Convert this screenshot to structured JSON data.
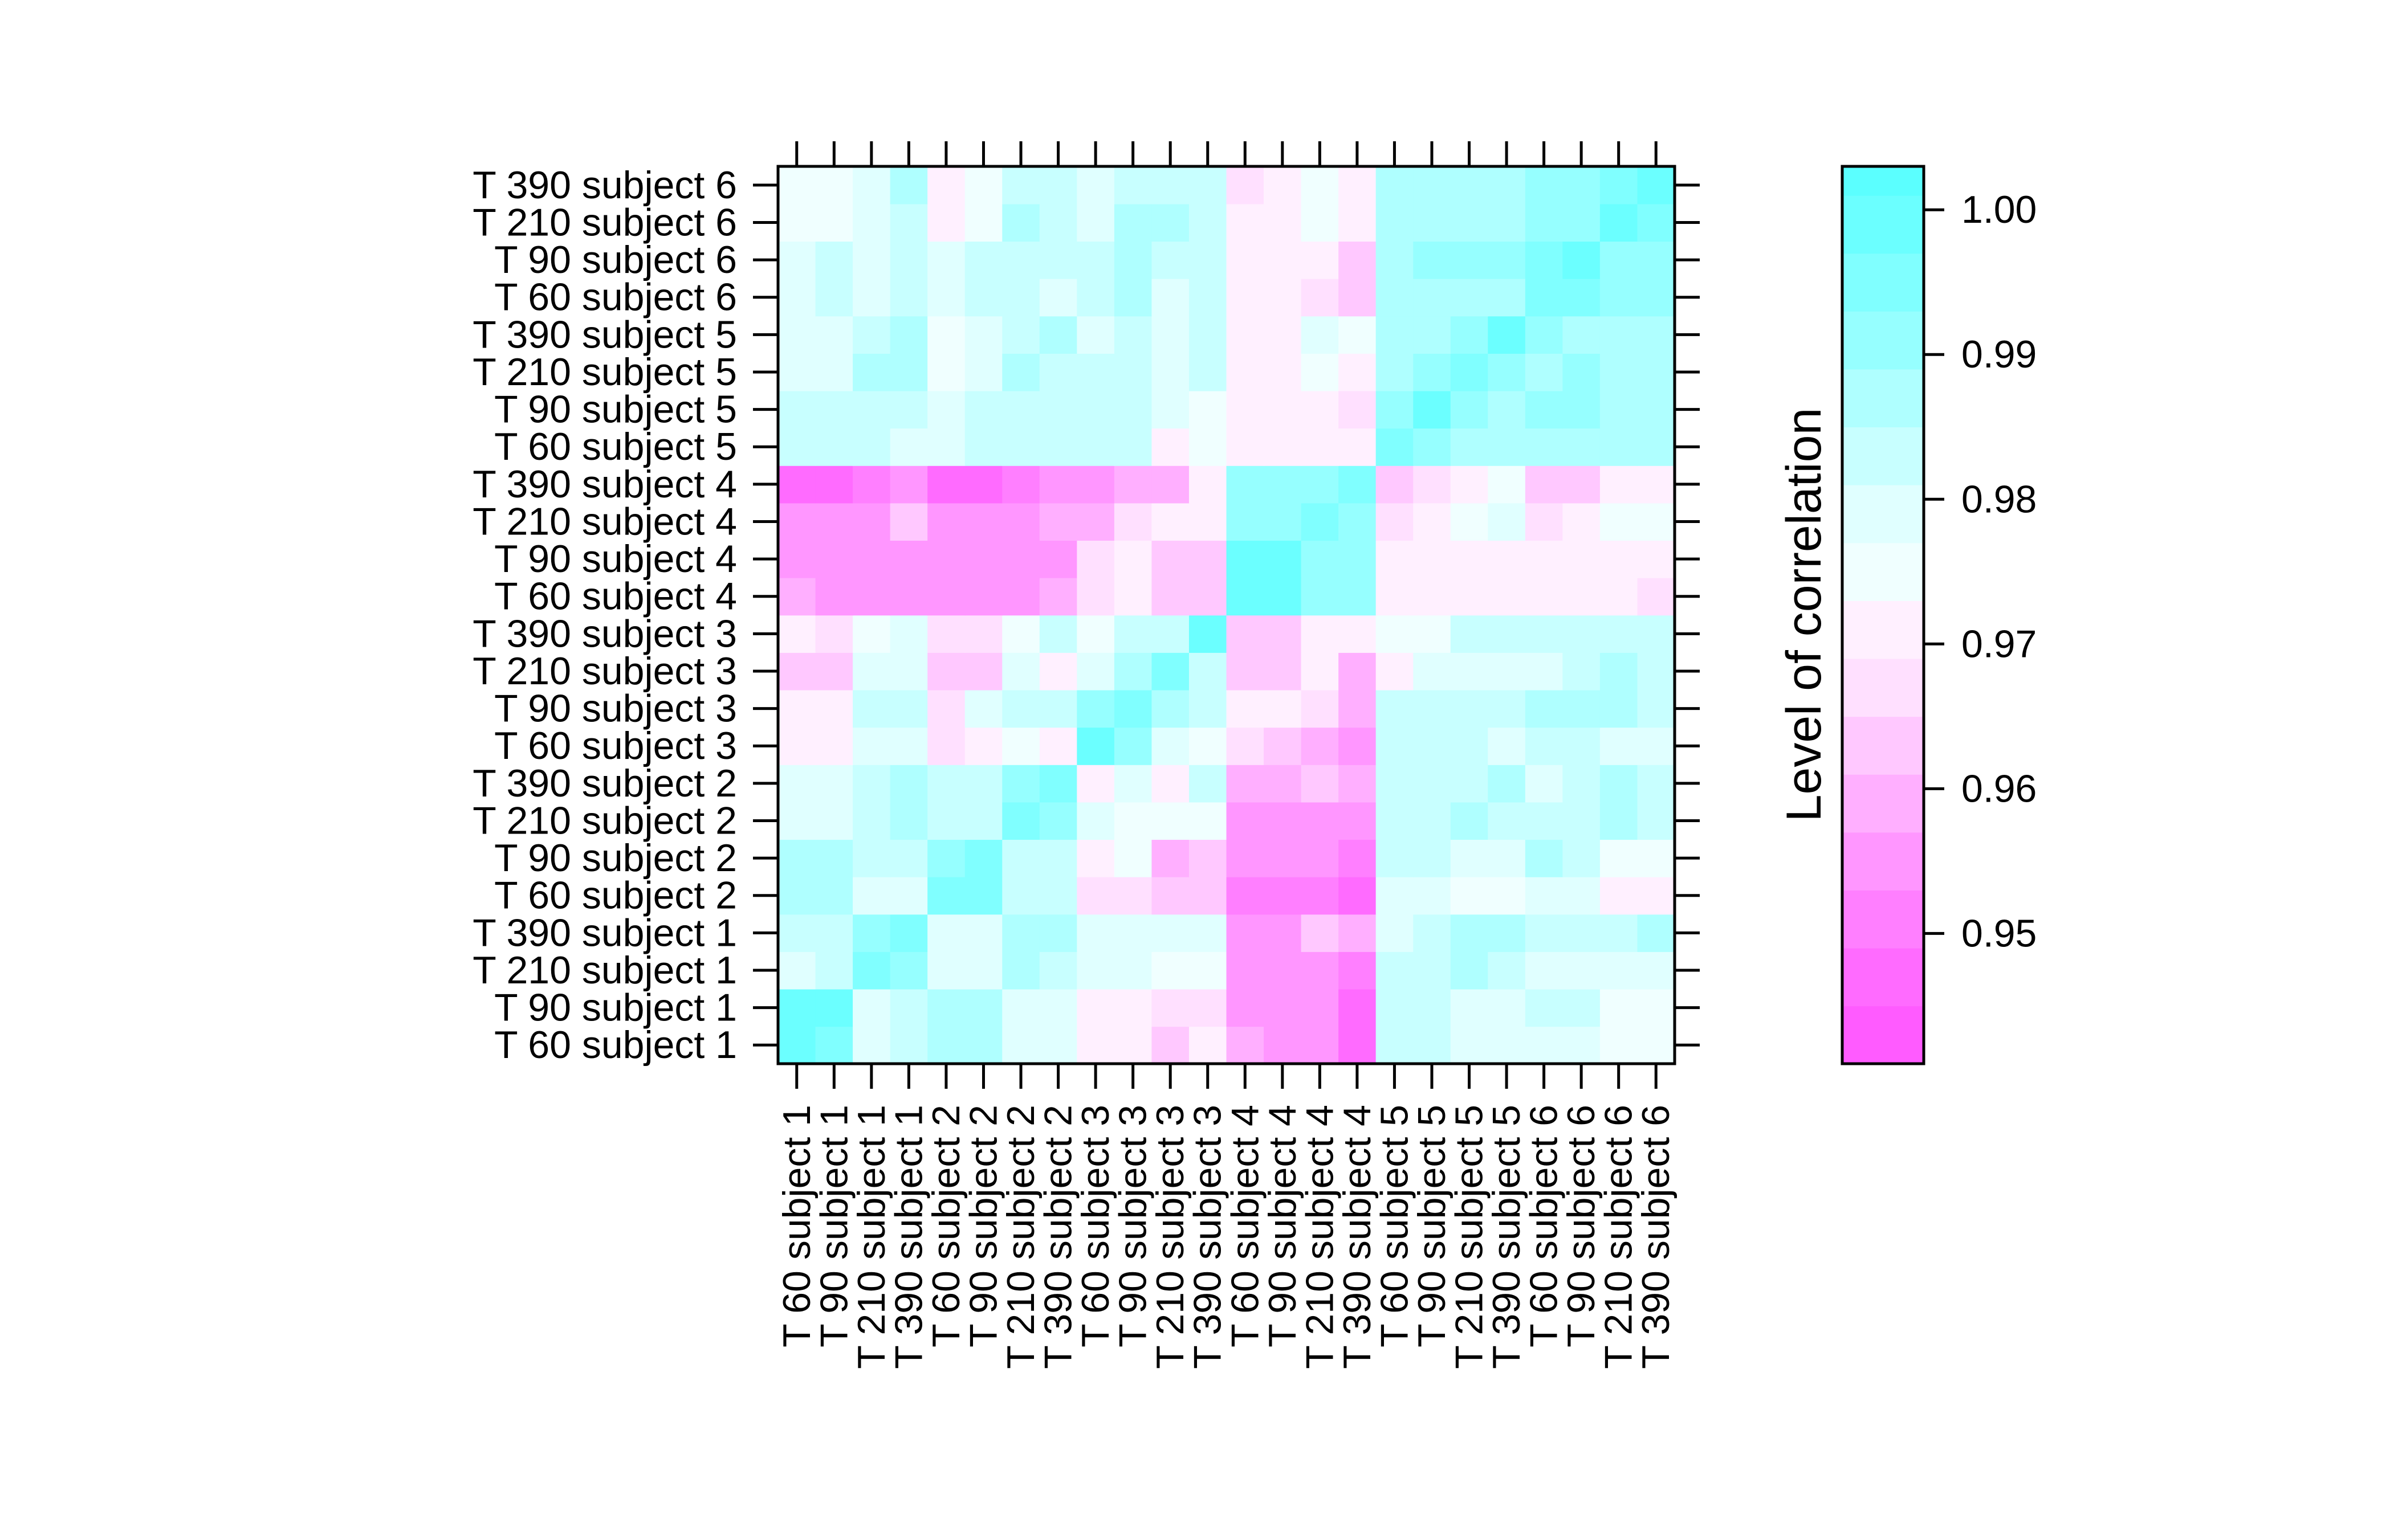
{
  "chart_data": {
    "type": "heatmap",
    "title": "",
    "xlabel": "",
    "ylabel": "",
    "x_labels": [
      "T 60 subject 1",
      "T 90 subject 1",
      "T 210 subject 1",
      "T 390 subject 1",
      "T 60 subject 2",
      "T 90 subject 2",
      "T 210 subject 2",
      "T 390 subject 2",
      "T 60 subject 3",
      "T 90 subject 3",
      "T 210 subject 3",
      "T 390 subject 3",
      "T 60 subject 4",
      "T 90 subject 4",
      "T 210 subject 4",
      "T 390 subject 4",
      "T 60 subject 5",
      "T 90 subject 5",
      "T 210 subject 5",
      "T 390 subject 5",
      "T 60 subject 6",
      "T 90 subject 6",
      "T 210 subject 6",
      "T 390 subject 6"
    ],
    "y_labels": [
      "T 60 subject 1",
      "T 90 subject 1",
      "T 210 subject 1",
      "T 390 subject 1",
      "T 60 subject 2",
      "T 90 subject 2",
      "T 210 subject 2",
      "T 390 subject 2",
      "T 60 subject 3",
      "T 90 subject 3",
      "T 210 subject 3",
      "T 390 subject 3",
      "T 60 subject 4",
      "T 90 subject 4",
      "T 210 subject 4",
      "T 390 subject 4",
      "T 60 subject 5",
      "T 90 subject 5",
      "T 210 subject 5",
      "T 390 subject 5",
      "T 60 subject 6",
      "T 90 subject 6",
      "T 210 subject 6",
      "T 390 subject 6"
    ],
    "values": [
      [
        0.998,
        0.996,
        0.979,
        0.981,
        0.987,
        0.987,
        0.978,
        0.978,
        0.971,
        0.971,
        0.964,
        0.969,
        0.958,
        0.953,
        0.953,
        0.945,
        0.984,
        0.984,
        0.98,
        0.98,
        0.98,
        0.98,
        0.976,
        0.976
      ],
      [
        0.997,
        0.998,
        0.979,
        0.981,
        0.986,
        0.985,
        0.98,
        0.978,
        0.972,
        0.971,
        0.965,
        0.966,
        0.953,
        0.953,
        0.954,
        0.948,
        0.984,
        0.984,
        0.98,
        0.98,
        0.982,
        0.982,
        0.976,
        0.976
      ],
      [
        0.979,
        0.981,
        0.996,
        0.99,
        0.979,
        0.979,
        0.986,
        0.984,
        0.978,
        0.978,
        0.976,
        0.976,
        0.955,
        0.955,
        0.955,
        0.951,
        0.984,
        0.984,
        0.985,
        0.982,
        0.98,
        0.98,
        0.98,
        0.98
      ],
      [
        0.983,
        0.983,
        0.991,
        0.996,
        0.979,
        0.98,
        0.986,
        0.986,
        0.978,
        0.98,
        0.978,
        0.978,
        0.955,
        0.956,
        0.962,
        0.958,
        0.978,
        0.982,
        0.987,
        0.986,
        0.982,
        0.982,
        0.982,
        0.986
      ],
      [
        0.987,
        0.987,
        0.978,
        0.978,
        0.996,
        0.993,
        0.984,
        0.984,
        0.968,
        0.968,
        0.961,
        0.963,
        0.951,
        0.951,
        0.951,
        0.948,
        0.98,
        0.978,
        0.976,
        0.976,
        0.978,
        0.978,
        0.97,
        0.97
      ],
      [
        0.988,
        0.988,
        0.981,
        0.982,
        0.991,
        0.996,
        0.984,
        0.984,
        0.972,
        0.976,
        0.96,
        0.964,
        0.956,
        0.956,
        0.956,
        0.952,
        0.982,
        0.982,
        0.98,
        0.98,
        0.986,
        0.982,
        0.975,
        0.975
      ],
      [
        0.979,
        0.979,
        0.984,
        0.986,
        0.984,
        0.984,
        0.996,
        0.989,
        0.98,
        0.976,
        0.975,
        0.975,
        0.956,
        0.956,
        0.956,
        0.953,
        0.982,
        0.982,
        0.986,
        0.982,
        0.984,
        0.984,
        0.986,
        0.982
      ],
      [
        0.978,
        0.978,
        0.984,
        0.986,
        0.984,
        0.984,
        0.99,
        0.996,
        0.972,
        0.979,
        0.972,
        0.982,
        0.96,
        0.957,
        0.962,
        0.958,
        0.982,
        0.982,
        0.984,
        0.986,
        0.98,
        0.984,
        0.986,
        0.984
      ],
      [
        0.971,
        0.971,
        0.979,
        0.979,
        0.966,
        0.971,
        0.976,
        0.972,
        0.998,
        0.99,
        0.978,
        0.974,
        0.966,
        0.962,
        0.957,
        0.955,
        0.982,
        0.982,
        0.982,
        0.978,
        0.984,
        0.982,
        0.98,
        0.98
      ],
      [
        0.971,
        0.971,
        0.982,
        0.982,
        0.968,
        0.978,
        0.984,
        0.982,
        0.99,
        0.996,
        0.986,
        0.982,
        0.972,
        0.972,
        0.968,
        0.958,
        0.984,
        0.984,
        0.984,
        0.984,
        0.986,
        0.986,
        0.986,
        0.984
      ],
      [
        0.964,
        0.964,
        0.977,
        0.977,
        0.962,
        0.964,
        0.977,
        0.972,
        0.978,
        0.986,
        0.996,
        0.983,
        0.964,
        0.964,
        0.972,
        0.958,
        0.972,
        0.978,
        0.98,
        0.98,
        0.978,
        0.982,
        0.986,
        0.982
      ],
      [
        0.969,
        0.966,
        0.976,
        0.978,
        0.966,
        0.968,
        0.976,
        0.982,
        0.974,
        0.982,
        0.982,
        0.998,
        0.964,
        0.964,
        0.972,
        0.972,
        0.976,
        0.976,
        0.982,
        0.984,
        0.982,
        0.982,
        0.984,
        0.982
      ],
      [
        0.958,
        0.955,
        0.955,
        0.955,
        0.956,
        0.956,
        0.956,
        0.958,
        0.966,
        0.972,
        0.964,
        0.964,
        0.998,
        0.998,
        0.99,
        0.99,
        0.972,
        0.972,
        0.972,
        0.972,
        0.972,
        0.972,
        0.972,
        0.968
      ],
      [
        0.953,
        0.953,
        0.955,
        0.955,
        0.953,
        0.955,
        0.956,
        0.956,
        0.966,
        0.972,
        0.964,
        0.964,
        0.997,
        0.998,
        0.99,
        0.99,
        0.972,
        0.972,
        0.972,
        0.972,
        0.972,
        0.972,
        0.972,
        0.972
      ],
      [
        0.953,
        0.953,
        0.955,
        0.962,
        0.953,
        0.953,
        0.956,
        0.958,
        0.958,
        0.968,
        0.972,
        0.972,
        0.99,
        0.99,
        0.996,
        0.99,
        0.968,
        0.972,
        0.976,
        0.978,
        0.968,
        0.972,
        0.976,
        0.976
      ],
      [
        0.945,
        0.948,
        0.951,
        0.956,
        0.947,
        0.947,
        0.952,
        0.956,
        0.955,
        0.958,
        0.958,
        0.97,
        0.99,
        0.99,
        0.99,
        0.996,
        0.962,
        0.968,
        0.972,
        0.976,
        0.962,
        0.962,
        0.972,
        0.972
      ],
      [
        0.984,
        0.984,
        0.984,
        0.978,
        0.98,
        0.982,
        0.982,
        0.982,
        0.982,
        0.984,
        0.972,
        0.976,
        0.972,
        0.972,
        0.972,
        0.972,
        0.996,
        0.991,
        0.986,
        0.986,
        0.986,
        0.986,
        0.986,
        0.986
      ],
      [
        0.984,
        0.984,
        0.984,
        0.982,
        0.98,
        0.982,
        0.982,
        0.982,
        0.982,
        0.984,
        0.978,
        0.976,
        0.972,
        0.972,
        0.972,
        0.968,
        0.991,
        0.998,
        0.99,
        0.988,
        0.99,
        0.99,
        0.988,
        0.986
      ],
      [
        0.98,
        0.98,
        0.985,
        0.986,
        0.976,
        0.98,
        0.986,
        0.984,
        0.982,
        0.984,
        0.98,
        0.982,
        0.972,
        0.972,
        0.976,
        0.972,
        0.988,
        0.99,
        0.996,
        0.991,
        0.988,
        0.99,
        0.988,
        0.988
      ],
      [
        0.98,
        0.98,
        0.982,
        0.986,
        0.976,
        0.98,
        0.982,
        0.986,
        0.978,
        0.984,
        0.98,
        0.984,
        0.972,
        0.972,
        0.978,
        0.976,
        0.986,
        0.988,
        0.991,
        0.998,
        0.99,
        0.988,
        0.988,
        0.988
      ],
      [
        0.98,
        0.982,
        0.98,
        0.982,
        0.978,
        0.984,
        0.984,
        0.98,
        0.984,
        0.986,
        0.978,
        0.982,
        0.972,
        0.972,
        0.968,
        0.962,
        0.986,
        0.988,
        0.988,
        0.988,
        0.996,
        0.995,
        0.99,
        0.99
      ],
      [
        0.98,
        0.982,
        0.98,
        0.982,
        0.978,
        0.982,
        0.984,
        0.984,
        0.982,
        0.986,
        0.982,
        0.982,
        0.972,
        0.972,
        0.972,
        0.962,
        0.986,
        0.99,
        0.99,
        0.99,
        0.996,
        0.998,
        0.99,
        0.99
      ],
      [
        0.976,
        0.976,
        0.98,
        0.982,
        0.97,
        0.975,
        0.986,
        0.984,
        0.98,
        0.986,
        0.986,
        0.984,
        0.972,
        0.972,
        0.976,
        0.972,
        0.988,
        0.988,
        0.988,
        0.988,
        0.99,
        0.99,
        0.998,
        0.994
      ],
      [
        0.976,
        0.976,
        0.98,
        0.986,
        0.97,
        0.975,
        0.982,
        0.984,
        0.98,
        0.984,
        0.982,
        0.982,
        0.968,
        0.972,
        0.976,
        0.972,
        0.986,
        0.986,
        0.988,
        0.988,
        0.99,
        0.99,
        0.994,
        0.998
      ]
    ],
    "colorkey": {
      "title": "Level of correlation",
      "ticks": [
        "0.95",
        "0.96",
        "0.97",
        "0.98",
        "0.99",
        "1.00"
      ],
      "tick_values": [
        0.95,
        0.96,
        0.97,
        0.98,
        0.99,
        1.0
      ],
      "range": [
        0.941,
        1.003
      ],
      "breaks": [
        0.941,
        0.945,
        0.949,
        0.953,
        0.957,
        0.961,
        0.965,
        0.969,
        0.973,
        0.977,
        0.981,
        0.985,
        0.989,
        0.993,
        0.997,
        1.001,
        1.003
      ],
      "colors": [
        "#ff5bff",
        "#ff6bff",
        "#ff7fff",
        "#ff96ff",
        "#ffafff",
        "#ffc8ff",
        "#ffe0ff",
        "#fff0ff",
        "#f0ffff",
        "#e0ffff",
        "#c8ffff",
        "#afffff",
        "#96ffff",
        "#80ffff",
        "#6bffff",
        "#5bffff"
      ],
      "low_color": "#ff5bff",
      "high_color": "#5bffff"
    }
  }
}
